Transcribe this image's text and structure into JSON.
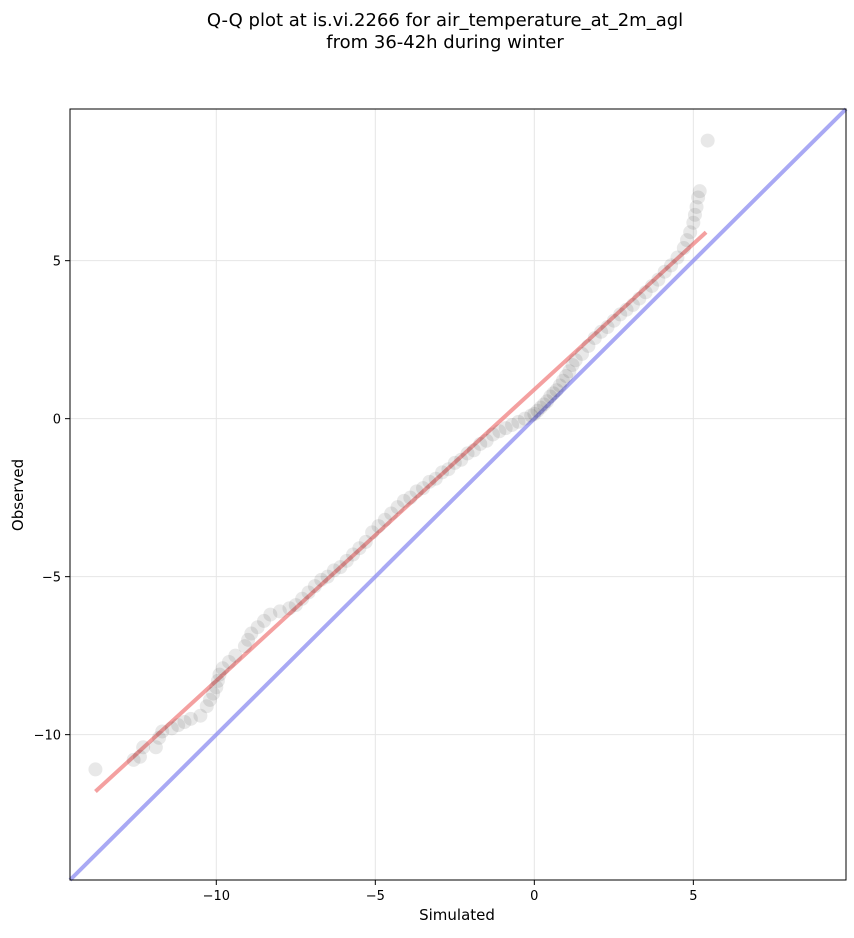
{
  "chart_data": {
    "type": "scatter",
    "title_lines": [
      "Q-Q plot at is.vi.2266 for air_temperature_at_2m_agl",
      "from 36-42h during winter"
    ],
    "xlabel": "Simulated",
    "ylabel": "Observed",
    "xlim": [
      -14.6,
      9.8
    ],
    "ylim": [
      -14.6,
      9.8
    ],
    "xticks": [
      -10,
      -5,
      0,
      5
    ],
    "yticks": [
      -10,
      -5,
      0,
      5
    ],
    "xtick_labels": [
      "−10",
      "−5",
      "0",
      "5"
    ],
    "ytick_labels": [
      "−10",
      "−5",
      "0",
      "5"
    ],
    "grid": true,
    "point_color": "#000000",
    "quantiles": [
      [
        -13.8,
        -11.1
      ],
      [
        -12.6,
        -10.8
      ],
      [
        -12.4,
        -10.7
      ],
      [
        -12.3,
        -10.4
      ],
      [
        -11.9,
        -10.4
      ],
      [
        -11.8,
        -10.1
      ],
      [
        -11.7,
        -9.9
      ],
      [
        -11.4,
        -9.8
      ],
      [
        -11.2,
        -9.7
      ],
      [
        -11.0,
        -9.6
      ],
      [
        -10.8,
        -9.5
      ],
      [
        -10.5,
        -9.4
      ],
      [
        -10.3,
        -9.1
      ],
      [
        -10.2,
        -8.9
      ],
      [
        -10.1,
        -8.7
      ],
      [
        -10.0,
        -8.5
      ],
      [
        -9.95,
        -8.3
      ],
      [
        -9.9,
        -8.1
      ],
      [
        -9.8,
        -7.9
      ],
      [
        -9.6,
        -7.7
      ],
      [
        -9.4,
        -7.5
      ],
      [
        -9.1,
        -7.2
      ],
      [
        -9.0,
        -7.0
      ],
      [
        -8.9,
        -6.8
      ],
      [
        -8.7,
        -6.6
      ],
      [
        -8.5,
        -6.4
      ],
      [
        -8.3,
        -6.2
      ],
      [
        -8.0,
        -6.1
      ],
      [
        -7.7,
        -6.0
      ],
      [
        -7.5,
        -5.9
      ],
      [
        -7.3,
        -5.7
      ],
      [
        -7.1,
        -5.5
      ],
      [
        -6.9,
        -5.3
      ],
      [
        -6.7,
        -5.1
      ],
      [
        -6.5,
        -5.0
      ],
      [
        -6.3,
        -4.8
      ],
      [
        -6.1,
        -4.7
      ],
      [
        -5.9,
        -4.5
      ],
      [
        -5.7,
        -4.3
      ],
      [
        -5.5,
        -4.1
      ],
      [
        -5.3,
        -3.9
      ],
      [
        -5.1,
        -3.6
      ],
      [
        -4.9,
        -3.4
      ],
      [
        -4.7,
        -3.2
      ],
      [
        -4.5,
        -3.0
      ],
      [
        -4.3,
        -2.8
      ],
      [
        -4.1,
        -2.6
      ],
      [
        -3.9,
        -2.5
      ],
      [
        -3.7,
        -2.3
      ],
      [
        -3.5,
        -2.2
      ],
      [
        -3.3,
        -2.0
      ],
      [
        -3.1,
        -1.9
      ],
      [
        -2.9,
        -1.7
      ],
      [
        -2.7,
        -1.6
      ],
      [
        -2.5,
        -1.4
      ],
      [
        -2.3,
        -1.3
      ],
      [
        -2.1,
        -1.1
      ],
      [
        -1.9,
        -1.0
      ],
      [
        -1.7,
        -0.8
      ],
      [
        -1.5,
        -0.7
      ],
      [
        -1.3,
        -0.5
      ],
      [
        -1.1,
        -0.4
      ],
      [
        -0.9,
        -0.3
      ],
      [
        -0.7,
        -0.2
      ],
      [
        -0.5,
        -0.1
      ],
      [
        -0.3,
        0.0
      ],
      [
        -0.1,
        0.1
      ],
      [
        0.0,
        0.15
      ],
      [
        0.1,
        0.25
      ],
      [
        0.2,
        0.35
      ],
      [
        0.3,
        0.45
      ],
      [
        0.4,
        0.55
      ],
      [
        0.5,
        0.7
      ],
      [
        0.6,
        0.8
      ],
      [
        0.7,
        0.9
      ],
      [
        0.8,
        1.05
      ],
      [
        0.9,
        1.2
      ],
      [
        1.0,
        1.35
      ],
      [
        1.1,
        1.5
      ],
      [
        1.2,
        1.7
      ],
      [
        1.3,
        1.85
      ],
      [
        1.5,
        2.05
      ],
      [
        1.7,
        2.3
      ],
      [
        1.9,
        2.55
      ],
      [
        2.1,
        2.75
      ],
      [
        2.3,
        2.9
      ],
      [
        2.5,
        3.1
      ],
      [
        2.7,
        3.3
      ],
      [
        2.9,
        3.45
      ],
      [
        3.1,
        3.6
      ],
      [
        3.3,
        3.8
      ],
      [
        3.5,
        4.0
      ],
      [
        3.7,
        4.2
      ],
      [
        3.9,
        4.4
      ],
      [
        4.1,
        4.65
      ],
      [
        4.3,
        4.85
      ],
      [
        4.5,
        5.1
      ],
      [
        4.7,
        5.4
      ],
      [
        4.8,
        5.65
      ],
      [
        4.9,
        5.9
      ],
      [
        5.0,
        6.2
      ],
      [
        5.05,
        6.45
      ],
      [
        5.1,
        6.7
      ],
      [
        5.15,
        7.0
      ],
      [
        5.2,
        7.2
      ],
      [
        5.45,
        8.8
      ]
    ],
    "fit_line": {
      "x": [
        -13.8,
        5.4
      ],
      "y": [
        -11.8,
        5.9
      ],
      "color": "#f08080"
    },
    "reference_line": {
      "x": [
        -14.6,
        9.8
      ],
      "y": [
        -14.6,
        9.8
      ],
      "color": "#8c8cf0"
    }
  }
}
